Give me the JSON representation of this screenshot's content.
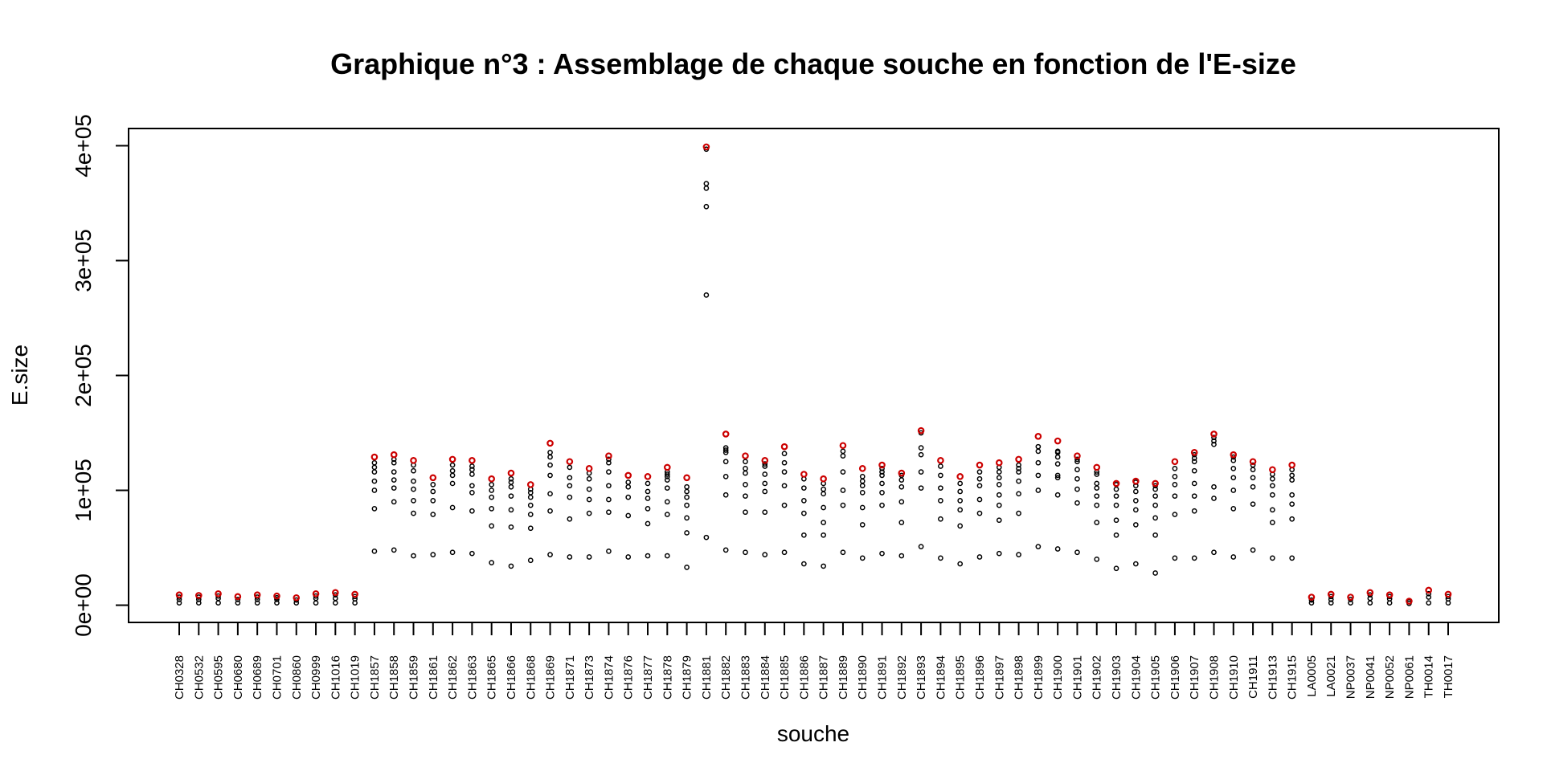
{
  "chart_data": {
    "type": "scatter",
    "title": "Graphique n°3 : Assemblage de chaque souche en fonction de l'E-size",
    "xlabel": "souche",
    "ylabel": "E.size",
    "ylim": [
      -15000,
      415000
    ],
    "yticks": [
      0,
      100000,
      200000,
      300000,
      400000
    ],
    "ytick_labels": [
      "0e+00",
      "1e+05",
      "2e+05",
      "3e+05",
      "4e+05"
    ],
    "grid": false,
    "colors": {
      "default": "#000000",
      "highlight": "#cc0000"
    },
    "categories": [
      "CH0328",
      "CH0532",
      "CH0595",
      "CH0680",
      "CH0689",
      "CH0701",
      "CH0860",
      "CH0999",
      "CH1016",
      "CH1019",
      "CH1857",
      "CH1858",
      "CH1859",
      "CH1861",
      "CH1862",
      "CH1863",
      "CH1865",
      "CH1866",
      "CH1868",
      "CH1869",
      "CH1871",
      "CH1873",
      "CH1874",
      "CH1876",
      "CH1877",
      "CH1878",
      "CH1879",
      "CH1881",
      "CH1882",
      "CH1883",
      "CH1884",
      "CH1885",
      "CH1886",
      "CH1887",
      "CH1889",
      "CH1890",
      "CH1891",
      "CH1892",
      "CH1893",
      "CH1894",
      "CH1895",
      "CH1896",
      "CH1897",
      "CH1898",
      "CH1899",
      "CH1900",
      "CH1901",
      "CH1902",
      "CH1903",
      "CH1904",
      "CH1905",
      "CH1906",
      "CH1907",
      "CH1908",
      "CH1910",
      "CH1911",
      "CH1913",
      "CH1915",
      "LA0005",
      "LA0021",
      "NP0037",
      "NP0041",
      "NP0052",
      "NP0061",
      "TH0014",
      "TH0017"
    ],
    "points": [
      [
        2000,
        5000,
        7000,
        9000
      ],
      [
        2000,
        5000,
        7000,
        8500
      ],
      [
        2000,
        6000,
        8000,
        10000
      ],
      [
        2000,
        5000,
        7500
      ],
      [
        2000,
        5000,
        7000,
        9000
      ],
      [
        2000,
        5000,
        6500,
        8000
      ],
      [
        2000,
        4500,
        6500
      ],
      [
        2000,
        6000,
        8000,
        10000
      ],
      [
        2000,
        6000,
        9000,
        11000
      ],
      [
        2000,
        5500,
        7500,
        9500
      ],
      [
        47000,
        84000,
        100000,
        108000,
        116000,
        120000,
        124000,
        129000
      ],
      [
        48000,
        90000,
        102000,
        109000,
        116000,
        124000,
        127000,
        131000
      ],
      [
        43000,
        80000,
        91000,
        101000,
        108000,
        117000,
        122000,
        126000
      ],
      [
        44000,
        79000,
        91000,
        99000,
        105000,
        111000
      ],
      [
        46000,
        85000,
        106000,
        113000,
        117000,
        122000,
        127000
      ],
      [
        45000,
        82000,
        98000,
        104000,
        114000,
        118000,
        121000,
        126000
      ],
      [
        37000,
        69000,
        84000,
        94000,
        100000,
        105000,
        110000
      ],
      [
        34000,
        68000,
        83000,
        95000,
        103000,
        107000,
        110000,
        115000
      ],
      [
        39000,
        67000,
        79000,
        87000,
        94000,
        98000,
        101000,
        105000
      ],
      [
        44000,
        82000,
        97000,
        113000,
        122000,
        129000,
        133000,
        141000
      ],
      [
        42000,
        75000,
        94000,
        104000,
        111000,
        120000,
        125000
      ],
      [
        42000,
        80000,
        92000,
        101000,
        110000,
        115000,
        119000
      ],
      [
        47000,
        81000,
        92000,
        104000,
        116000,
        124000,
        127000,
        130000
      ],
      [
        42000,
        78000,
        94000,
        103000,
        107000,
        113000
      ],
      [
        43000,
        71000,
        84000,
        93000,
        99000,
        106000,
        112000
      ],
      [
        43000,
        79000,
        90000,
        102000,
        109000,
        112000,
        114000,
        116000,
        120000
      ],
      [
        33000,
        63000,
        76000,
        87000,
        94000,
        99000,
        103000,
        111000
      ],
      [
        59000,
        270000,
        347000,
        363000,
        367000,
        397000,
        399000
      ],
      [
        48000,
        96000,
        112000,
        125000,
        133000,
        135000,
        137000,
        149000
      ],
      [
        46000,
        81000,
        95000,
        105000,
        115000,
        119000,
        125000,
        130000
      ],
      [
        44000,
        81000,
        99000,
        106000,
        114000,
        121000,
        126000,
        123000
      ],
      [
        46000,
        87000,
        104000,
        116000,
        124000,
        132000,
        138000
      ],
      [
        36000,
        61000,
        80000,
        91000,
        102000,
        110000,
        114000
      ],
      [
        34000,
        61000,
        72000,
        85000,
        97000,
        101000,
        106000,
        110000
      ],
      [
        46000,
        87000,
        100000,
        116000,
        130000,
        134000,
        139000
      ],
      [
        41000,
        70000,
        85000,
        98000,
        104000,
        108000,
        112000,
        119000
      ],
      [
        45000,
        87000,
        98000,
        106000,
        113000,
        116000,
        119000,
        122000
      ],
      [
        43000,
        72000,
        90000,
        103000,
        109000,
        115000,
        113000
      ],
      [
        51000,
        102000,
        116000,
        131000,
        137000,
        150000,
        152000
      ],
      [
        41000,
        75000,
        91000,
        102000,
        113000,
        121000,
        126000
      ],
      [
        36000,
        69000,
        83000,
        91000,
        99000,
        106000,
        112000
      ],
      [
        42000,
        80000,
        92000,
        104000,
        110000,
        116000,
        122000
      ],
      [
        45000,
        74000,
        87000,
        96000,
        105000,
        111000,
        120000,
        124000,
        116000
      ],
      [
        44000,
        80000,
        97000,
        108000,
        116000,
        119000,
        122000,
        127000
      ],
      [
        51000,
        100000,
        113000,
        124000,
        134000,
        138000,
        147000
      ],
      [
        49000,
        96000,
        111000,
        113000,
        123000,
        129000,
        134000,
        143000,
        133000
      ],
      [
        46000,
        89000,
        101000,
        110000,
        118000,
        125000,
        130000,
        127000
      ],
      [
        40000,
        72000,
        87000,
        95000,
        102000,
        106000,
        114000,
        116000,
        120000
      ],
      [
        32000,
        61000,
        74000,
        87000,
        95000,
        101000,
        105000,
        106000
      ],
      [
        36000,
        70000,
        83000,
        91000,
        99000,
        104000,
        107000,
        108000
      ],
      [
        28000,
        61000,
        76000,
        87000,
        95000,
        101000,
        104000,
        106000
      ],
      [
        41000,
        79000,
        95000,
        105000,
        112000,
        119000,
        125000
      ],
      [
        41000,
        82000,
        95000,
        106000,
        117000,
        125000,
        128000,
        133000,
        131000
      ],
      [
        46000,
        93000,
        103000,
        140000,
        143000,
        146000,
        149000
      ],
      [
        42000,
        84000,
        100000,
        111000,
        119000,
        126000,
        129000,
        131000
      ],
      [
        48000,
        88000,
        103000,
        111000,
        118000,
        122000,
        125000
      ],
      [
        41000,
        72000,
        83000,
        96000,
        104000,
        110000,
        114000,
        118000
      ],
      [
        41000,
        75000,
        88000,
        96000,
        109000,
        113000,
        118000,
        122000
      ],
      [
        2000,
        4500,
        7000
      ],
      [
        2000,
        5000,
        7500,
        9500
      ],
      [
        2000,
        5000,
        7000
      ],
      [
        2000,
        6000,
        9000,
        11000
      ],
      [
        2000,
        5500,
        7500,
        9000
      ],
      [
        1500,
        3000,
        3500
      ],
      [
        2000,
        7000,
        10000,
        13000
      ],
      [
        2000,
        5500,
        7500,
        9500
      ]
    ]
  }
}
